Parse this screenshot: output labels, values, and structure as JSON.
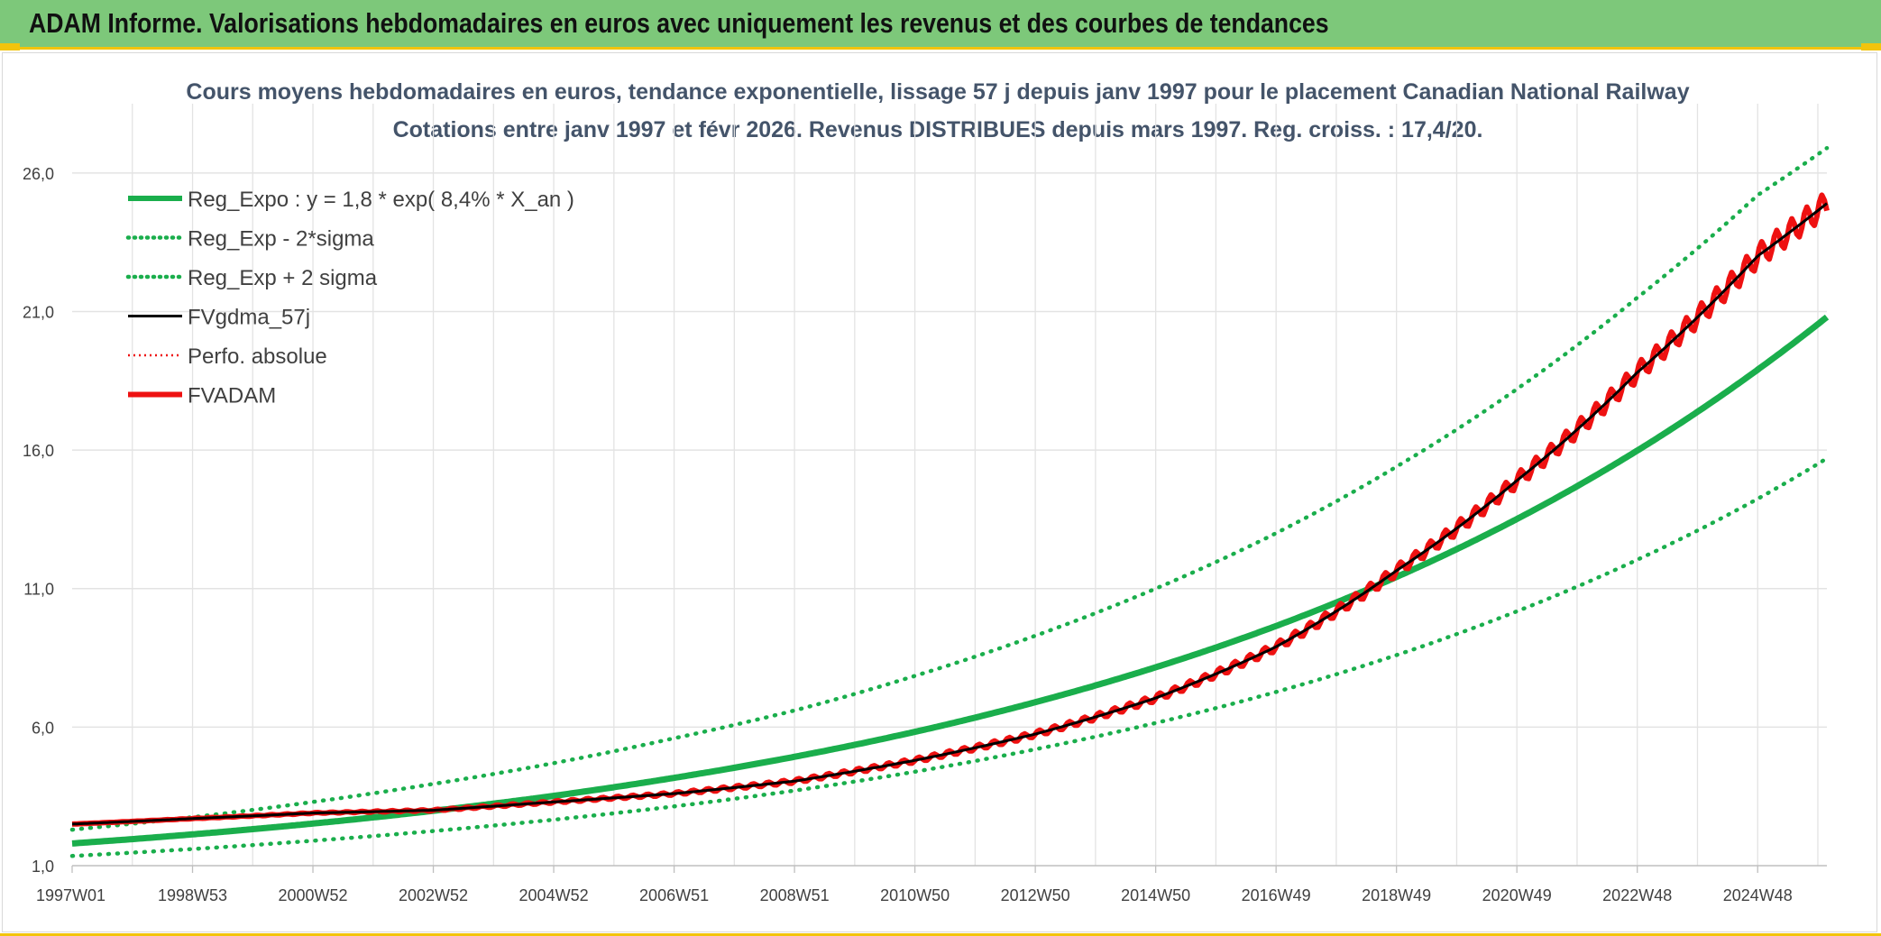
{
  "header": {
    "title": "ADAM Informe. Valorisations hebdomadaires en euros avec uniquement les revenus et des courbes de tendances"
  },
  "colors": {
    "banner": "#7dc87a",
    "accent_yellow": "#f2c40c",
    "reg_green": "#1aae4c",
    "fv_black": "#000000",
    "fv_red": "#ee1111"
  },
  "chart_data": {
    "type": "line",
    "title": "Cours moyens hebdomadaires en euros, tendance exponentielle, lissage 57 j depuis janv 1997 pour le placement Canadian National Railway",
    "subtitle": "Cotations entre janv 1997 et févr 2026. Revenus DISTRIBUES depuis mars 1997. Reg. croiss. : 17,4/20.",
    "x_tick_labels": [
      "1997W01",
      "1998W53",
      "2000W52",
      "2002W52",
      "2004W52",
      "2006W51",
      "2008W51",
      "2010W50",
      "2012W50",
      "2014W50",
      "2016W49",
      "2018W49",
      "2020W49",
      "2022W48",
      "2024W48"
    ],
    "x_tick_years": [
      1997,
      1999,
      2001,
      2003,
      2005,
      2007,
      2009,
      2011,
      2013,
      2015,
      2017,
      2019,
      2021,
      2023,
      2025
    ],
    "x_range": [
      1997.0,
      2026.15
    ],
    "y_ticks": [
      "1,0",
      "6,0",
      "11,0",
      "16,0",
      "21,0",
      "26,0"
    ],
    "ylim": [
      1.0,
      28.5
    ],
    "grid": true,
    "legend_position": "top-left",
    "series": [
      {
        "name": "Reg_Expo : y = 1,8 * exp( 8,4% *  X_an )",
        "style": "solid-thick",
        "color": "#1aae4c",
        "x": [
          1997,
          1999,
          2001,
          2003,
          2005,
          2007,
          2009,
          2011,
          2013,
          2015,
          2017,
          2019,
          2021,
          2023,
          2025,
          2026.15
        ],
        "y": [
          1.8,
          2.13,
          2.52,
          2.98,
          3.52,
          4.17,
          4.93,
          5.83,
          6.9,
          8.16,
          9.65,
          11.42,
          13.51,
          15.98,
          18.9,
          20.8
        ]
      },
      {
        "name": "Reg_Exp - 2*sigma",
        "style": "dotted",
        "color": "#1aae4c",
        "x": [
          1997,
          1999,
          2001,
          2003,
          2005,
          2007,
          2009,
          2011,
          2013,
          2015,
          2017,
          2019,
          2021,
          2023,
          2025,
          2026.15
        ],
        "y": [
          1.35,
          1.6,
          1.9,
          2.25,
          2.66,
          3.14,
          3.71,
          4.39,
          5.2,
          6.15,
          7.27,
          8.6,
          10.18,
          12.04,
          14.24,
          15.7
        ]
      },
      {
        "name": "Reg_Exp + 2 sigma",
        "style": "dotted",
        "color": "#1aae4c",
        "x": [
          1997,
          1999,
          2001,
          2003,
          2005,
          2007,
          2009,
          2011,
          2013,
          2015,
          2017,
          2019,
          2021,
          2023,
          2025,
          2026.15
        ],
        "y": [
          2.3,
          2.75,
          3.3,
          3.95,
          4.7,
          5.6,
          6.6,
          7.85,
          9.3,
          11.0,
          13.0,
          15.4,
          18.2,
          21.5,
          25.2,
          26.9
        ]
      },
      {
        "name": "FVgdma_57j",
        "style": "solid",
        "color": "#000000",
        "x": [
          1997,
          1999,
          2001,
          2003,
          2005,
          2007,
          2009,
          2011,
          2013,
          2015,
          2017,
          2019,
          2021,
          2023,
          2025,
          2026.15
        ],
        "y": [
          2.5,
          2.7,
          2.9,
          3.0,
          3.3,
          3.6,
          4.05,
          4.8,
          5.75,
          7.05,
          8.9,
          11.65,
          14.9,
          18.8,
          23.0,
          24.9
        ]
      },
      {
        "name": "Perfo. absolue",
        "style": "dotted-thin",
        "color": "#ee1111",
        "x": [],
        "y": []
      },
      {
        "name": "FVADAM",
        "style": "solid-thick-stepped",
        "color": "#ee1111",
        "x": [
          1997,
          1999,
          2001,
          2003,
          2005,
          2007,
          2009,
          2011,
          2013,
          2015,
          2017,
          2019,
          2021,
          2023,
          2025,
          2026.15
        ],
        "y": [
          2.5,
          2.7,
          2.9,
          3.0,
          3.3,
          3.6,
          4.05,
          4.8,
          5.75,
          7.05,
          8.9,
          11.65,
          14.9,
          18.8,
          23.0,
          24.9
        ]
      }
    ]
  }
}
